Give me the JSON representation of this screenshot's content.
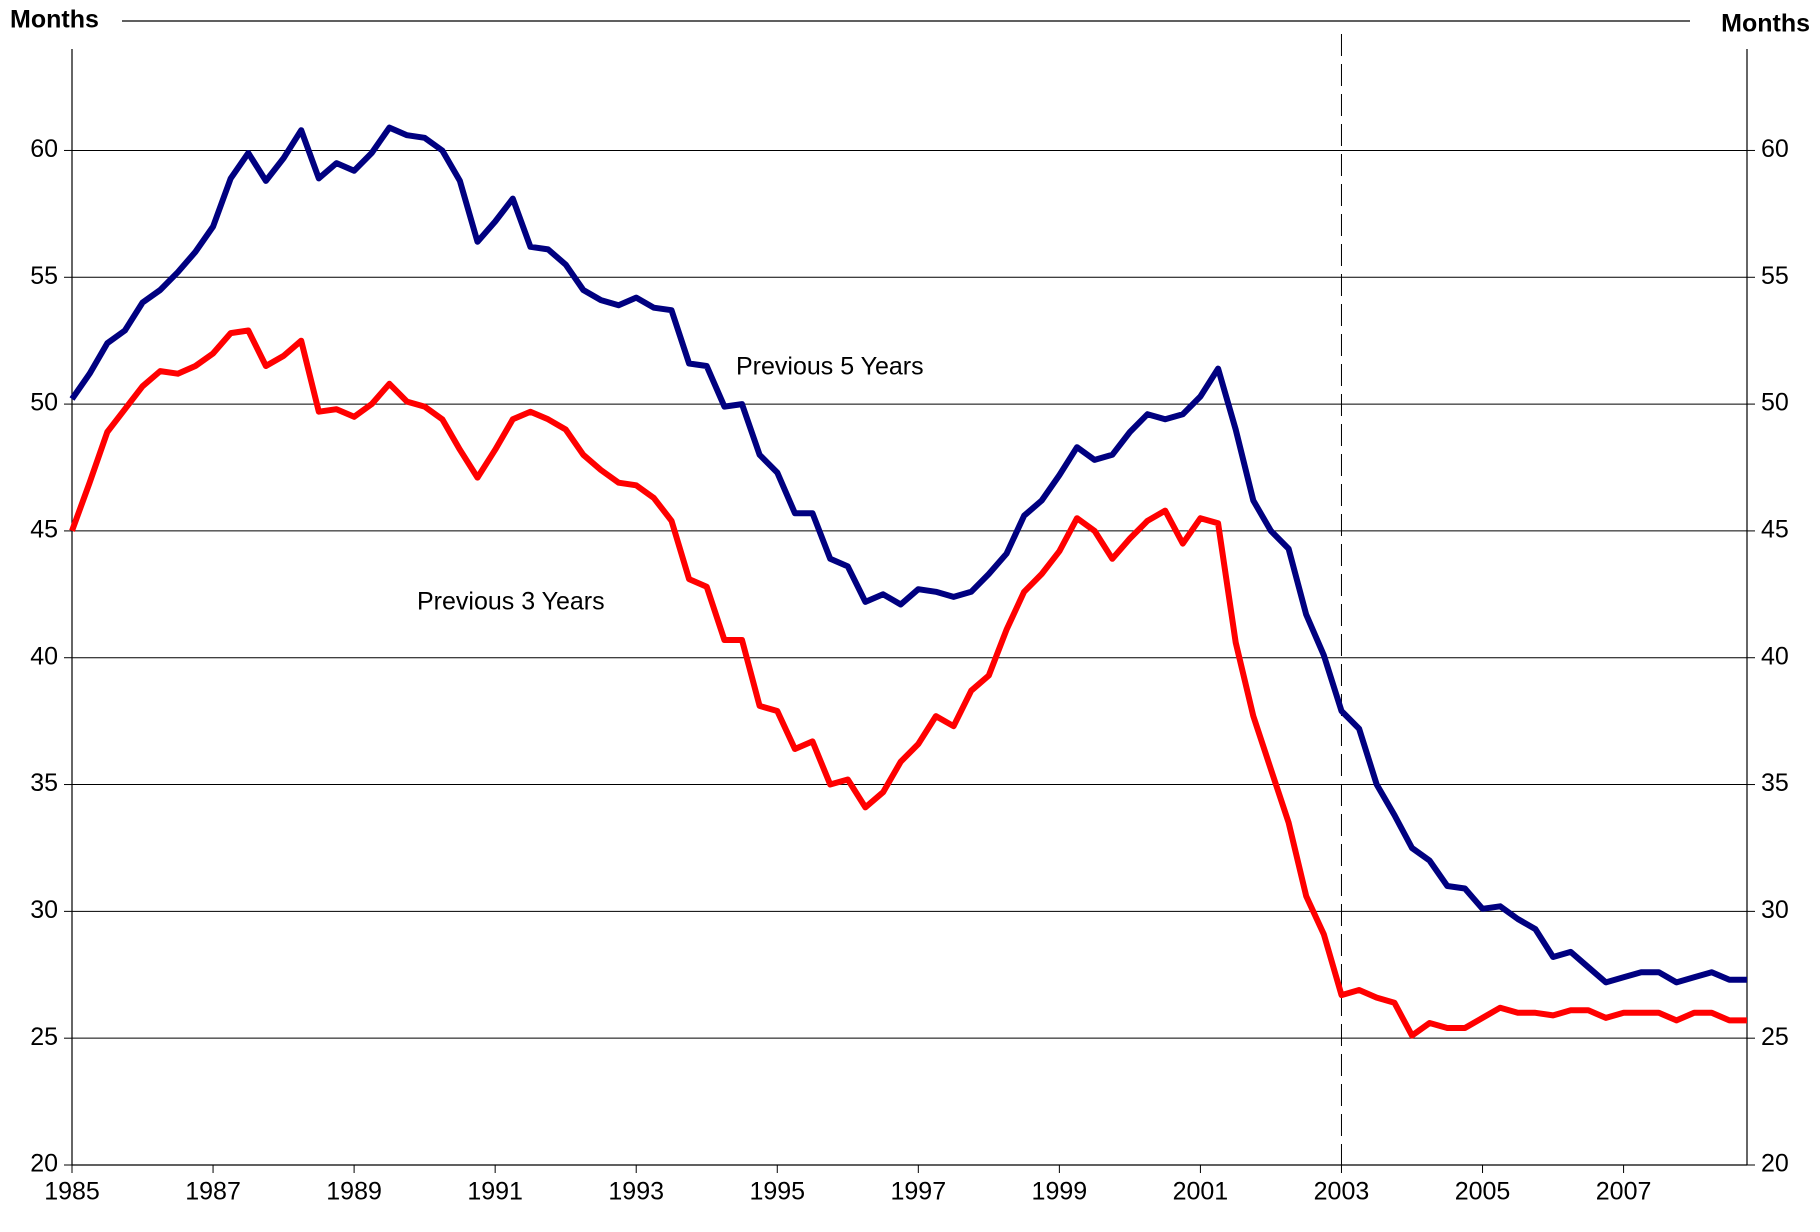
{
  "chart_data": {
    "type": "line",
    "y_label_left": "Months",
    "y_label_right": "Months",
    "x": [
      1985,
      1985.25,
      1985.5,
      1985.75,
      1986,
      1986.25,
      1986.5,
      1986.75,
      1987,
      1987.25,
      1987.5,
      1987.75,
      1988,
      1988.25,
      1988.5,
      1988.75,
      1989,
      1989.25,
      1989.5,
      1989.75,
      1990,
      1990.25,
      1990.5,
      1990.75,
      1991,
      1991.25,
      1991.5,
      1991.75,
      1992,
      1992.25,
      1992.5,
      1992.75,
      1993,
      1993.25,
      1993.5,
      1993.75,
      1994,
      1994.25,
      1994.5,
      1994.75,
      1995,
      1995.25,
      1995.5,
      1995.75,
      1996,
      1996.25,
      1996.5,
      1996.75,
      1997,
      1997.25,
      1997.5,
      1997.75,
      1998,
      1998.25,
      1998.5,
      1998.75,
      1999,
      1999.25,
      1999.5,
      1999.75,
      2000,
      2000.25,
      2000.5,
      2000.75,
      2001,
      2001.25,
      2001.5,
      2001.75,
      2002,
      2002.25,
      2002.5,
      2002.75,
      2003,
      2003.25,
      2003.5,
      2003.75,
      2004,
      2004.25,
      2004.5,
      2004.75,
      2005,
      2005.25,
      2005.5,
      2005.75,
      2006,
      2006.25,
      2006.5,
      2006.75,
      2007,
      2007.25,
      2007.5,
      2007.75,
      2008,
      2008.25,
      2008.5,
      2008.75
    ],
    "series": [
      {
        "name": "Previous 5 Years",
        "color": "#000080",
        "values": [
          50.2,
          51.2,
          52.4,
          52.9,
          54.0,
          54.5,
          55.2,
          56.0,
          57.0,
          58.9,
          59.9,
          58.8,
          59.7,
          60.8,
          58.9,
          59.5,
          59.2,
          59.9,
          60.9,
          60.6,
          60.5,
          60.0,
          58.8,
          56.4,
          57.2,
          58.1,
          56.2,
          56.1,
          55.5,
          54.5,
          54.1,
          53.9,
          54.2,
          53.8,
          53.7,
          51.6,
          51.5,
          49.9,
          50.0,
          48.0,
          47.3,
          45.7,
          45.7,
          43.9,
          43.6,
          42.2,
          42.5,
          42.1,
          42.7,
          42.6,
          42.4,
          42.6,
          43.3,
          44.1,
          45.6,
          46.2,
          47.2,
          48.3,
          47.8,
          48.0,
          48.9,
          49.6,
          49.4,
          49.6,
          50.3,
          51.4,
          49.0,
          46.2,
          45.0,
          44.3,
          41.7,
          40.1,
          37.9,
          37.2,
          35.0,
          33.8,
          32.5,
          32.0,
          31.0,
          30.9,
          30.1,
          30.2,
          29.7,
          29.3,
          28.2,
          28.4,
          27.8,
          27.2,
          27.4,
          27.6,
          27.6,
          27.2,
          27.4,
          27.6,
          27.3,
          27.3
        ]
      },
      {
        "name": "Previous 3 Years",
        "color": "#ff0000",
        "values": [
          45.0,
          46.9,
          48.9,
          49.8,
          50.7,
          51.3,
          51.2,
          51.5,
          52.0,
          52.8,
          52.9,
          51.5,
          51.9,
          52.5,
          49.7,
          49.8,
          49.5,
          50.0,
          50.8,
          50.1,
          49.9,
          49.4,
          48.2,
          47.1,
          48.2,
          49.4,
          49.7,
          49.4,
          49.0,
          48.0,
          47.4,
          46.9,
          46.8,
          46.3,
          45.4,
          43.1,
          42.8,
          40.7,
          40.7,
          38.1,
          37.9,
          36.4,
          36.7,
          35.0,
          35.2,
          34.1,
          34.7,
          35.9,
          36.6,
          37.7,
          37.3,
          38.7,
          39.3,
          41.1,
          42.6,
          43.3,
          44.2,
          45.5,
          45.0,
          43.9,
          44.7,
          45.4,
          45.8,
          44.5,
          45.5,
          45.3,
          40.6,
          37.7,
          35.6,
          33.5,
          30.6,
          29.1,
          26.7,
          26.9,
          26.6,
          26.4,
          25.1,
          25.6,
          25.4,
          25.4,
          25.8,
          26.2,
          26.0,
          26.0,
          25.9,
          26.1,
          26.1,
          25.8,
          26.0,
          26.0,
          26.0,
          25.7,
          26.0,
          26.0,
          25.7,
          25.7
        ]
      }
    ],
    "xlim": [
      1985,
      2008.75
    ],
    "xticks": [
      1985,
      1987,
      1989,
      1991,
      1993,
      1995,
      1997,
      1999,
      2001,
      2003,
      2005,
      2007
    ],
    "ylim": [
      20,
      64
    ],
    "yticks": [
      20,
      25,
      30,
      35,
      40,
      45,
      50,
      55,
      60
    ],
    "grid": true,
    "vline": 2003
  }
}
